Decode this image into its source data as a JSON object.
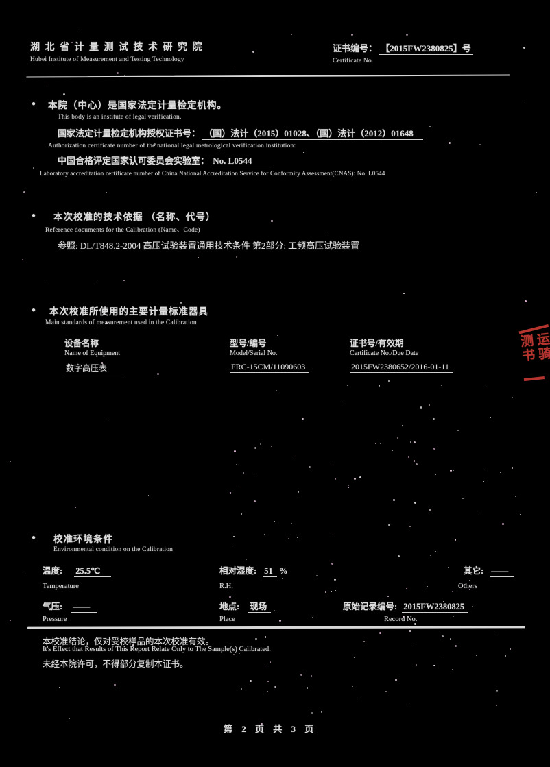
{
  "page": {
    "bg": "#000000",
    "text_color": "#dcdcdc",
    "accent_red": "#c63a33"
  },
  "header": {
    "institute_cn": "湖 北 省 计 量 测 试 技 术 研 究 院",
    "institute_en": "Hubei Institute of Measurement and Testing Technology",
    "cert_no_label_cn": "证书编号：",
    "cert_no_value": "【2015FW2380825】号",
    "cert_no_label_en": "Certificate No."
  },
  "section_legal": {
    "bullet": "●",
    "title_cn": "本院（中心）是国家法定计量检定机构。",
    "title_en": "This body is an institute of legal verification.",
    "auth_label_cn": "国家法定计量检定机构授权证书号：",
    "auth_value": "（国）法计（2015）01028、（国）法计（2012）01648",
    "auth_line_en": "Authorization certificate number of the national legal metrological verification institution:",
    "cnas_label_cn": "中国合格评定国家认可委员会实验室：",
    "cnas_value": "No. L0544",
    "cnas_line_en": "Laboratory accreditation certificate number of China National Accreditation Service for Conformity Assessment(CNAS): No. L0544"
  },
  "section_reference": {
    "bullet": "●",
    "title_cn": "本次校准的技术依据 （名称、代号）",
    "title_en": "Reference documents for the Calibration (Name、Code)",
    "content": "参照: DL/T848.2-2004 高压试验装置通用技术条件  第2部分: 工频高压试验装置"
  },
  "section_standards": {
    "bullet": "●",
    "title_cn": "本次校准所使用的主要计量标准器具",
    "title_en": "Main standards of measurement used in the Calibration",
    "columns": [
      {
        "cn": "设备名称",
        "en": "Name of Equipment"
      },
      {
        "cn": "型号/编号",
        "en": "Model/Serial No."
      },
      {
        "cn": "证书号/有效期",
        "en": "Certificate No./Due Date"
      }
    ],
    "row": {
      "name": "数字高压表",
      "model_serial": "FRC-15CM/11090603",
      "cert_due": "2015FW2380652/2016-01-11"
    }
  },
  "stamp": {
    "col_left": "测书",
    "col_right": "运骑"
  },
  "section_environment": {
    "bullet": "●",
    "title_cn": "校准环境条件",
    "title_en": "Environmental condition on the Calibration",
    "temperature": {
      "label_cn": "温度:",
      "value": "25.5℃",
      "label_en": "Temperature"
    },
    "humidity": {
      "label_cn": "相对湿度:",
      "value": "51",
      "unit": "%",
      "label_en": "R.H."
    },
    "others": {
      "label_cn": "其它:",
      "value": "——",
      "label_en": "Others"
    },
    "pressure": {
      "label_cn": "气压:",
      "value": "——",
      "label_en": "Pressure"
    },
    "place": {
      "label_cn": "地点:",
      "value": "现场",
      "label_en": "Place"
    },
    "record": {
      "label_cn": "原始记录编号:",
      "value": "2015FW2380825",
      "label_en": "Record No."
    }
  },
  "footer_notes": {
    "note1_cn": "本校准结论，仅对受校样品的本次校准有效。",
    "note1_en": "It's Effect that Results of This Report Relate Only to The Sample(s) Calibrated.",
    "note2_cn": "未经本院许可，不得部分复制本证书。"
  },
  "page_footer": {
    "text": "第 2 页  共 3 页"
  }
}
